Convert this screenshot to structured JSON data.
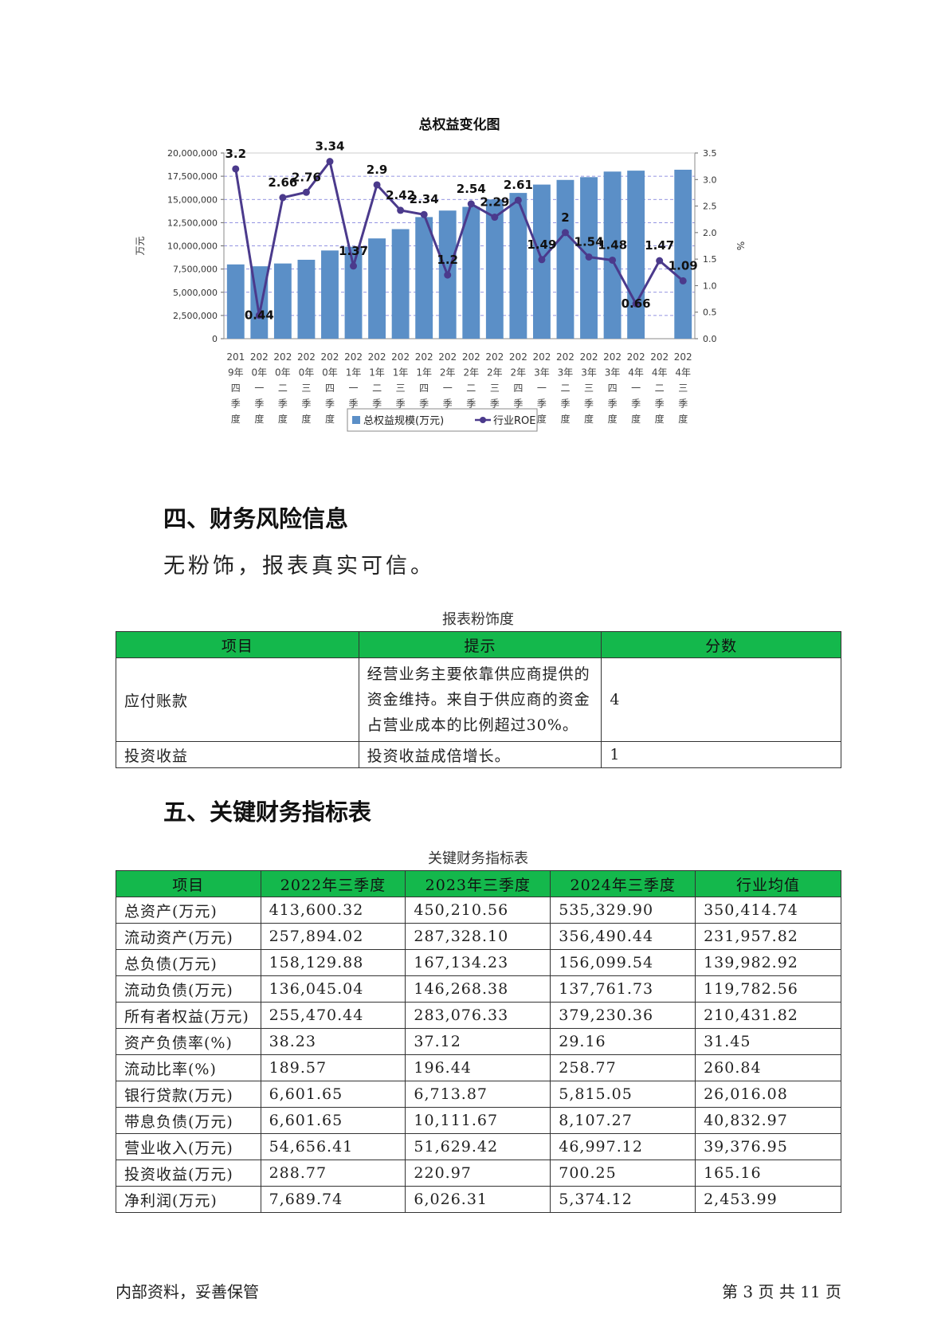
{
  "chart_data": {
    "type": "bar+line",
    "title": "总权益变化图",
    "ylabel_left": "万元",
    "ylabel_right": "%",
    "ylim_left": [
      0,
      20000000
    ],
    "ylim_right": [
      0,
      3.5
    ],
    "yticks_left": [
      "0",
      "2,500,000",
      "5,000,000",
      "7,500,000",
      "10,000,000",
      "12,500,000",
      "15,000,000",
      "17,500,000",
      "20,000,000"
    ],
    "yticks_right": [
      "0.0",
      "0.5",
      "1.0",
      "1.5",
      "2.0",
      "2.5",
      "3.0",
      "3.5"
    ],
    "categories": [
      [
        "201",
        "9年",
        "四",
        "季",
        "度"
      ],
      [
        "202",
        "0年",
        "一",
        "季",
        "度"
      ],
      [
        "202",
        "0年",
        "二",
        "季",
        "度"
      ],
      [
        "202",
        "0年",
        "三",
        "季",
        "度"
      ],
      [
        "202",
        "0年",
        "四",
        "季",
        "度"
      ],
      [
        "202",
        "1年",
        "一",
        "季",
        "度"
      ],
      [
        "202",
        "1年",
        "二",
        "季",
        "度"
      ],
      [
        "202",
        "1年",
        "三",
        "季",
        "度"
      ],
      [
        "202",
        "1年",
        "四",
        "季",
        "度"
      ],
      [
        "202",
        "2年",
        "一",
        "季",
        "度"
      ],
      [
        "202",
        "2年",
        "二",
        "季",
        "度"
      ],
      [
        "202",
        "2年",
        "三",
        "季",
        "度"
      ],
      [
        "202",
        "2年",
        "四",
        "季",
        "度"
      ],
      [
        "202",
        "3年",
        "一",
        "季",
        "度"
      ],
      [
        "202",
        "3年",
        "二",
        "季",
        "度"
      ],
      [
        "202",
        "3年",
        "三",
        "季",
        "度"
      ],
      [
        "202",
        "3年",
        "四",
        "季",
        "度"
      ],
      [
        "202",
        "4年",
        "一",
        "季",
        "度"
      ],
      [
        "202",
        "4年",
        "二",
        "季",
        "度"
      ],
      [
        "202",
        "4年",
        "三",
        "季",
        "度"
      ]
    ],
    "series": [
      {
        "name": "总权益规模(万元)",
        "type": "bar",
        "axis": "left",
        "color": "#5b8fc7",
        "values": [
          8000000,
          7800000,
          8100000,
          8500000,
          9500000,
          9900000,
          10800000,
          11800000,
          13100000,
          13800000,
          14200000,
          15000000,
          15700000,
          16600000,
          17100000,
          17400000,
          18000000,
          18100000,
          null,
          18200000
        ]
      },
      {
        "name": "行业ROE",
        "type": "line",
        "axis": "right",
        "color": "#4b3a8c",
        "values": [
          3.2,
          0.44,
          2.66,
          2.76,
          3.34,
          1.37,
          2.9,
          2.42,
          2.34,
          1.2,
          2.54,
          2.29,
          2.61,
          1.49,
          2.0,
          1.54,
          1.48,
          0.66,
          1.47,
          1.09
        ],
        "labels": [
          "3.2",
          "0.44",
          "2.66",
          "2.76",
          "3.34",
          "1.37",
          "2.9",
          "2.42",
          "2.34",
          "1.2",
          "2.54",
          "2.29",
          "2.61",
          "1.49",
          "2",
          "1.54",
          "1.48",
          "0.66",
          "1.47",
          "1.09"
        ]
      }
    ],
    "grid": true,
    "legend_position": "bottom"
  },
  "section4": {
    "title": "四、财务风险信息",
    "text": "无粉饰，报表真实可信。"
  },
  "risk_table": {
    "caption": "报表粉饰度",
    "headers": [
      "项目",
      "提示",
      "分数"
    ],
    "rows": [
      {
        "item": "应付账款",
        "hint": "经营业务主要依靠供应商提供的资金维持。来自于供应商的资金占营业成本的比例超过30%。",
        "score": "4"
      },
      {
        "item": "投资收益",
        "hint": "投资收益成倍增长。",
        "score": "1"
      }
    ]
  },
  "section5": {
    "title": "五、关键财务指标表"
  },
  "kpi_table": {
    "caption": "关键财务指标表",
    "headers": [
      "项目",
      "2022年三季度",
      "2023年三季度",
      "2024年三季度",
      "行业均值"
    ],
    "rows": [
      [
        "总资产(万元)",
        "413,600.32",
        "450,210.56",
        "535,329.90",
        "350,414.74"
      ],
      [
        "流动资产(万元)",
        "257,894.02",
        "287,328.10",
        "356,490.44",
        "231,957.82"
      ],
      [
        "总负债(万元)",
        "158,129.88",
        "167,134.23",
        "156,099.54",
        "139,982.92"
      ],
      [
        "流动负债(万元)",
        "136,045.04",
        "146,268.38",
        "137,761.73",
        "119,782.56"
      ],
      [
        "所有者权益(万元)",
        "255,470.44",
        "283,076.33",
        "379,230.36",
        "210,431.82"
      ],
      [
        "资产负债率(%)",
        "38.23",
        "37.12",
        "29.16",
        "31.45"
      ],
      [
        "流动比率(%)",
        "189.57",
        "196.44",
        "258.77",
        "260.84"
      ],
      [
        "银行贷款(万元)",
        "6,601.65",
        "6,713.87",
        "5,815.05",
        "26,016.08"
      ],
      [
        "带息负债(万元)",
        "6,601.65",
        "10,111.67",
        "8,107.27",
        "40,832.97"
      ],
      [
        "营业收入(万元)",
        "54,656.41",
        "51,629.42",
        "46,997.12",
        "39,376.95"
      ],
      [
        "投资收益(万元)",
        "288.77",
        "220.97",
        "700.25",
        "165.16"
      ],
      [
        "净利润(万元)",
        "7,689.74",
        "6,026.31",
        "5,374.12",
        "2,453.99"
      ]
    ]
  },
  "footer": {
    "left": "内部资料，妥善保管",
    "right": "第 3 页  共 11 页"
  },
  "colors": {
    "table_header": "#14b84c",
    "bar": "#5b8fc7",
    "line": "#4b3a8c"
  }
}
